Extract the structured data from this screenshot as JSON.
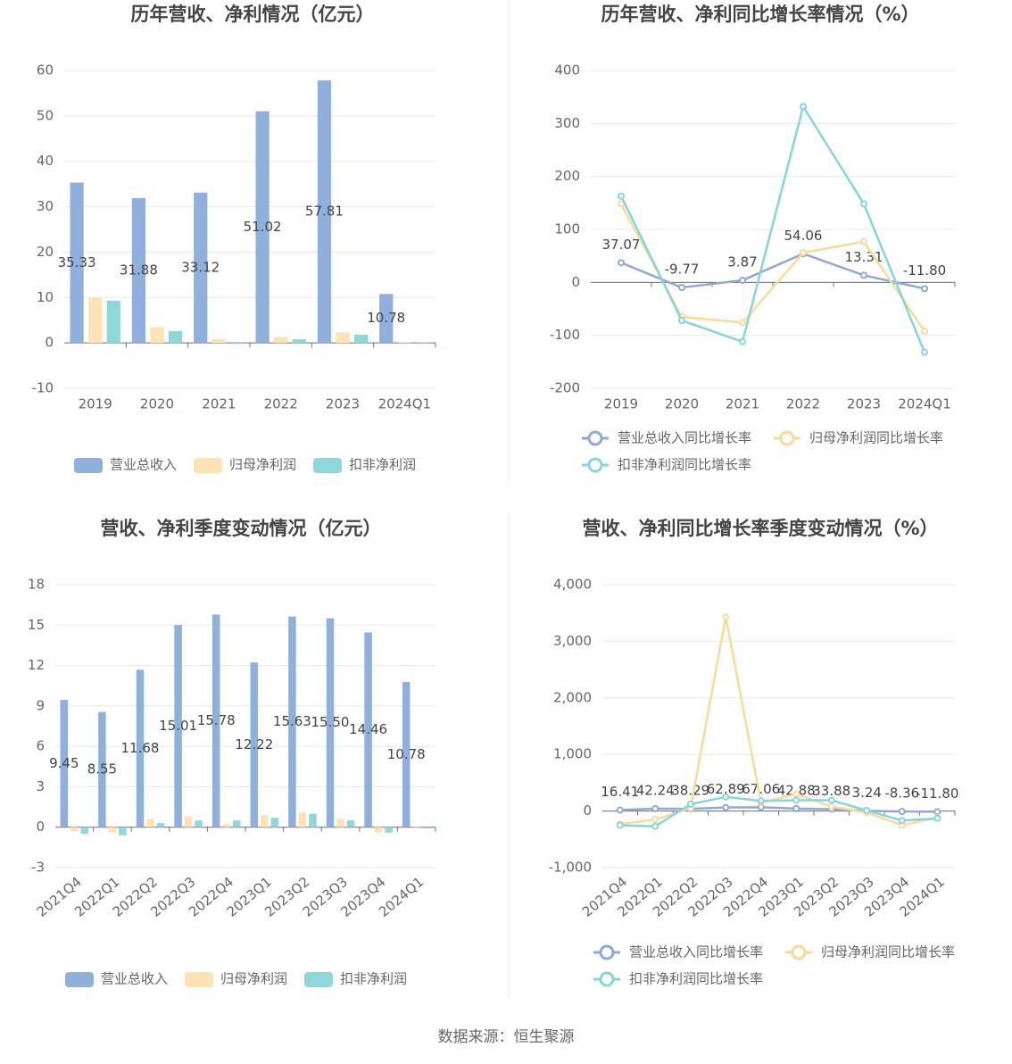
{
  "chart_data": [
    {
      "type": "bar",
      "title": "历年营收、净利情况（亿元）",
      "categories": [
        "2019",
        "2020",
        "2021",
        "2022",
        "2023",
        "2024Q1"
      ],
      "series": [
        {
          "name": "营业总收入",
          "color": "#8fb0dc",
          "values": [
            35.33,
            31.88,
            33.12,
            51.02,
            57.81,
            10.78
          ],
          "value_labels": [
            "35.33",
            "31.88",
            "33.12",
            "51.02",
            "57.81",
            "10.78"
          ]
        },
        {
          "name": "归母净利润",
          "color": "#fde3b4",
          "values": [
            10.0,
            3.5,
            0.8,
            1.3,
            2.3,
            0.1
          ]
        },
        {
          "name": "扣非净利润",
          "color": "#8ed8dc",
          "values": [
            9.3,
            2.6,
            -0.2,
            0.8,
            1.8,
            0.1
          ]
        }
      ],
      "ylim": [
        -10,
        60
      ],
      "yticks": [
        -10,
        0,
        10,
        20,
        30,
        40,
        50,
        60
      ],
      "grid": true
    },
    {
      "type": "line",
      "title": "历年营收、净利同比增长率情况（%）",
      "categories": [
        "2019",
        "2020",
        "2021",
        "2022",
        "2023",
        "2024Q1"
      ],
      "series": [
        {
          "name": "营业总收入同比增长率",
          "color": "#8fa9d6",
          "values": [
            37.07,
            -9.77,
            3.87,
            54.06,
            13.31,
            -11.8
          ],
          "value_labels": [
            "37.07",
            "-9.77",
            "3.87",
            "54.06",
            "13.31",
            "-11.80"
          ]
        },
        {
          "name": "归母净利润同比增长率",
          "color": "#fbd99a",
          "values": [
            148,
            -65,
            -76,
            56,
            77,
            -92
          ]
        },
        {
          "name": "扣非净利润同比增长率",
          "color": "#85d6d9",
          "values": [
            163,
            -72,
            -112,
            332,
            148,
            -132
          ]
        }
      ],
      "ylim": [
        -200,
        400
      ],
      "yticks": [
        -200,
        -100,
        0,
        100,
        200,
        300,
        400
      ],
      "grid": true
    },
    {
      "type": "bar",
      "title": "营收、净利季度变动情况（亿元）",
      "categories": [
        "2021Q4",
        "2022Q1",
        "2022Q2",
        "2022Q3",
        "2022Q4",
        "2023Q1",
        "2023Q2",
        "2023Q3",
        "2023Q4",
        "2024Q1"
      ],
      "series": [
        {
          "name": "营业总收入",
          "color": "#8fb0dc",
          "values": [
            9.45,
            8.55,
            11.68,
            15.01,
            15.78,
            12.22,
            15.63,
            15.5,
            14.46,
            10.78
          ],
          "value_labels": [
            "9.45",
            "8.55",
            "11.68",
            "15.01",
            "15.78",
            "12.22",
            "15.63",
            "15.50",
            "14.46",
            "10.78"
          ]
        },
        {
          "name": "归母净利润",
          "color": "#fde3b4",
          "values": [
            -0.3,
            -0.4,
            0.6,
            0.8,
            0.2,
            0.9,
            1.1,
            0.6,
            -0.4,
            0.05
          ]
        },
        {
          "name": "扣非净利润",
          "color": "#8ed8dc",
          "values": [
            -0.5,
            -0.6,
            0.3,
            0.5,
            0.5,
            0.7,
            1.0,
            0.5,
            -0.4,
            -0.1
          ]
        }
      ],
      "ylim": [
        -3,
        18
      ],
      "yticks": [
        -3,
        0,
        3,
        6,
        9,
        12,
        15,
        18
      ],
      "grid": true
    },
    {
      "type": "line",
      "title": "营收、净利同比增长率季度变动情况（%）",
      "categories": [
        "2021Q4",
        "2022Q1",
        "2022Q2",
        "2022Q3",
        "2022Q4",
        "2023Q1",
        "2023Q2",
        "2023Q3",
        "2023Q4",
        "2024Q1"
      ],
      "series": [
        {
          "name": "营业总收入同比增长率",
          "color": "#8fa9d6",
          "values": [
            16.41,
            42.24,
            38.29,
            62.89,
            67.06,
            42.88,
            33.88,
            3.24,
            -8.36,
            -11.8
          ],
          "value_labels": [
            "16.41",
            "42.24",
            "38.29",
            "62.89",
            "67.06",
            "42.88",
            "33.88",
            "3.24",
            "-8.36",
            "-11.80"
          ]
        },
        {
          "name": "归母净利润同比增长率",
          "color": "#fbd99a",
          "values": [
            -230,
            -150,
            50,
            3430,
            150,
            300,
            80,
            -30,
            -250,
            -120
          ]
        },
        {
          "name": "扣非净利润同比增长率",
          "color": "#85d6d9",
          "values": [
            -250,
            -270,
            120,
            250,
            180,
            190,
            190,
            10,
            -170,
            -130
          ]
        }
      ],
      "ylim": [
        -1000,
        4000
      ],
      "yticks": [
        {
          "value": -1000,
          "label": "-1,000"
        },
        0,
        {
          "value": 1000,
          "label": "1,000"
        },
        {
          "value": 2000,
          "label": "2,000"
        },
        {
          "value": 3000,
          "label": "3,000"
        },
        {
          "value": 4000,
          "label": "4,000"
        }
      ],
      "grid": true
    }
  ],
  "footer": "数据来源：恒生聚源"
}
